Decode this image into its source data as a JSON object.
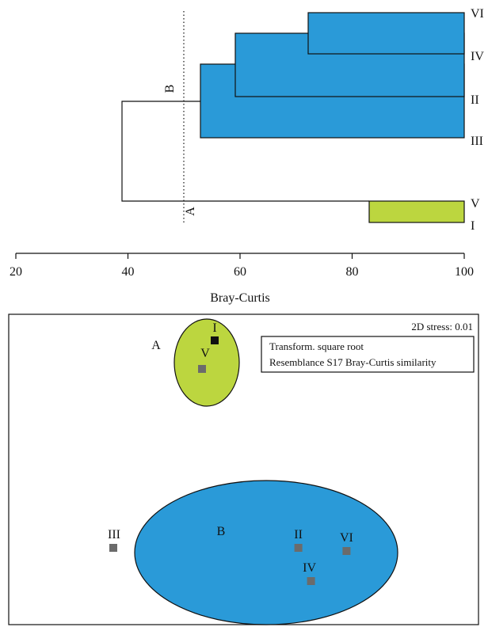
{
  "chart_data": [
    {
      "type": "dendrogram",
      "xlabel": "Bray-Curtis",
      "xlim": [
        20,
        100
      ],
      "xticks": [
        20,
        40,
        60,
        80,
        100
      ],
      "cut_level": 50,
      "leaves": [
        "VI",
        "IV",
        "II",
        "III",
        "V",
        "I"
      ],
      "merges": [
        {
          "members": [
            "VI",
            "IV"
          ],
          "similarity": 72
        },
        {
          "members": [
            "VI",
            "IV",
            "II"
          ],
          "similarity": 59
        },
        {
          "members": [
            "VI",
            "IV",
            "II",
            "III"
          ],
          "similarity": 53
        },
        {
          "members": [
            "V",
            "I"
          ],
          "similarity": 83
        },
        {
          "members": [
            "VI",
            "IV",
            "II",
            "III",
            "V",
            "I"
          ],
          "similarity": 39
        }
      ],
      "groups": [
        {
          "label": "B",
          "members": [
            "VI",
            "IV",
            "II",
            "III"
          ],
          "color": "#2a9ad8"
        },
        {
          "label": "A",
          "members": [
            "V",
            "I"
          ],
          "color": "#bcd63f"
        }
      ]
    },
    {
      "type": "scatter",
      "title": "",
      "stress": "2D stress: 0.01",
      "annotation_lines": [
        "Transform. square root",
        "Resemblance S17 Bray-Curtis similarity"
      ],
      "groups": [
        {
          "label": "A",
          "color": "#bcd63f"
        },
        {
          "label": "B",
          "color": "#2a9ad8"
        }
      ],
      "points": [
        {
          "label": "I",
          "x": 0.3,
          "y": 0.92,
          "color": "#111111"
        },
        {
          "label": "V",
          "x": 0.25,
          "y": 0.74,
          "color": "#6b6b6b"
        },
        {
          "label": "III",
          "x": -0.1,
          "y": -0.39,
          "color": "#6b6b6b"
        },
        {
          "label": "II",
          "x": 0.63,
          "y": -0.39,
          "color": "#6b6b6b"
        },
        {
          "label": "VI",
          "x": 0.82,
          "y": -0.41,
          "color": "#6b6b6b"
        },
        {
          "label": "IV",
          "x": 0.68,
          "y": -0.6,
          "color": "#6b6b6b"
        }
      ]
    }
  ]
}
